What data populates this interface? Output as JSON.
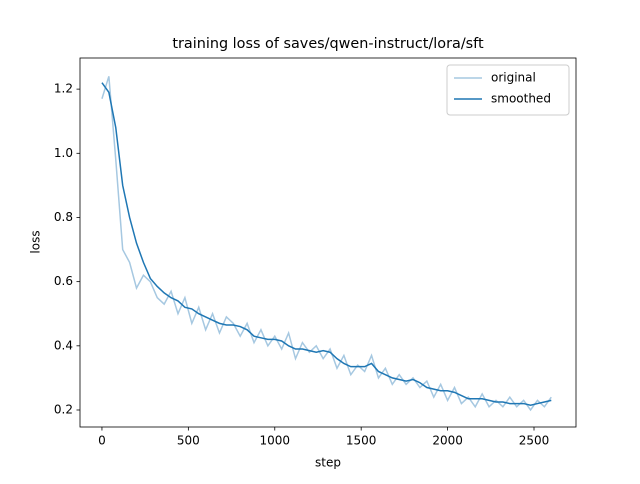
{
  "chart_data": {
    "type": "line",
    "title": "training loss of saves/qwen-instruct/lora/sft",
    "xlabel": "step",
    "ylabel": "loss",
    "x": [
      0,
      40,
      80,
      120,
      160,
      200,
      240,
      280,
      320,
      360,
      400,
      440,
      480,
      520,
      560,
      600,
      640,
      680,
      720,
      760,
      800,
      840,
      880,
      920,
      960,
      1000,
      1040,
      1080,
      1120,
      1160,
      1200,
      1240,
      1280,
      1320,
      1360,
      1400,
      1440,
      1480,
      1520,
      1560,
      1600,
      1640,
      1680,
      1720,
      1760,
      1800,
      1840,
      1880,
      1920,
      1960,
      2000,
      2040,
      2080,
      2120,
      2160,
      2200,
      2240,
      2280,
      2320,
      2360,
      2400,
      2440,
      2480,
      2520,
      2560,
      2600
    ],
    "series": [
      {
        "name": "original",
        "color": "#a6c8e1",
        "values": [
          1.17,
          1.24,
          0.98,
          0.7,
          0.66,
          0.58,
          0.62,
          0.6,
          0.55,
          0.53,
          0.57,
          0.5,
          0.55,
          0.47,
          0.52,
          0.45,
          0.5,
          0.44,
          0.49,
          0.47,
          0.43,
          0.47,
          0.41,
          0.45,
          0.4,
          0.43,
          0.39,
          0.44,
          0.36,
          0.41,
          0.38,
          0.4,
          0.36,
          0.39,
          0.33,
          0.37,
          0.31,
          0.34,
          0.32,
          0.37,
          0.3,
          0.33,
          0.28,
          0.31,
          0.28,
          0.3,
          0.27,
          0.29,
          0.24,
          0.28,
          0.23,
          0.27,
          0.22,
          0.24,
          0.21,
          0.25,
          0.21,
          0.23,
          0.21,
          0.24,
          0.21,
          0.23,
          0.2,
          0.23,
          0.21,
          0.24
        ]
      },
      {
        "name": "smoothed",
        "color": "#1f77b4",
        "values": [
          1.22,
          1.19,
          1.08,
          0.9,
          0.8,
          0.72,
          0.66,
          0.61,
          0.585,
          0.565,
          0.55,
          0.54,
          0.52,
          0.515,
          0.5,
          0.49,
          0.48,
          0.47,
          0.465,
          0.465,
          0.46,
          0.45,
          0.43,
          0.425,
          0.42,
          0.42,
          0.415,
          0.4,
          0.39,
          0.39,
          0.385,
          0.38,
          0.385,
          0.38,
          0.36,
          0.345,
          0.335,
          0.335,
          0.335,
          0.345,
          0.32,
          0.31,
          0.3,
          0.295,
          0.29,
          0.295,
          0.285,
          0.27,
          0.265,
          0.26,
          0.26,
          0.255,
          0.245,
          0.235,
          0.235,
          0.235,
          0.23,
          0.225,
          0.225,
          0.22,
          0.22,
          0.22,
          0.215,
          0.22,
          0.225,
          0.23
        ]
      }
    ],
    "xlim": [
      -127,
      2743
    ],
    "ylim": [
      0.147,
      1.297
    ],
    "xticks": [
      0,
      500,
      1000,
      1500,
      2000,
      2500
    ],
    "yticks": [
      0.2,
      0.4,
      0.6,
      0.8,
      {
        "value": 1,
        "label": "1.0"
      },
      1.2
    ],
    "legend": "upper right"
  }
}
